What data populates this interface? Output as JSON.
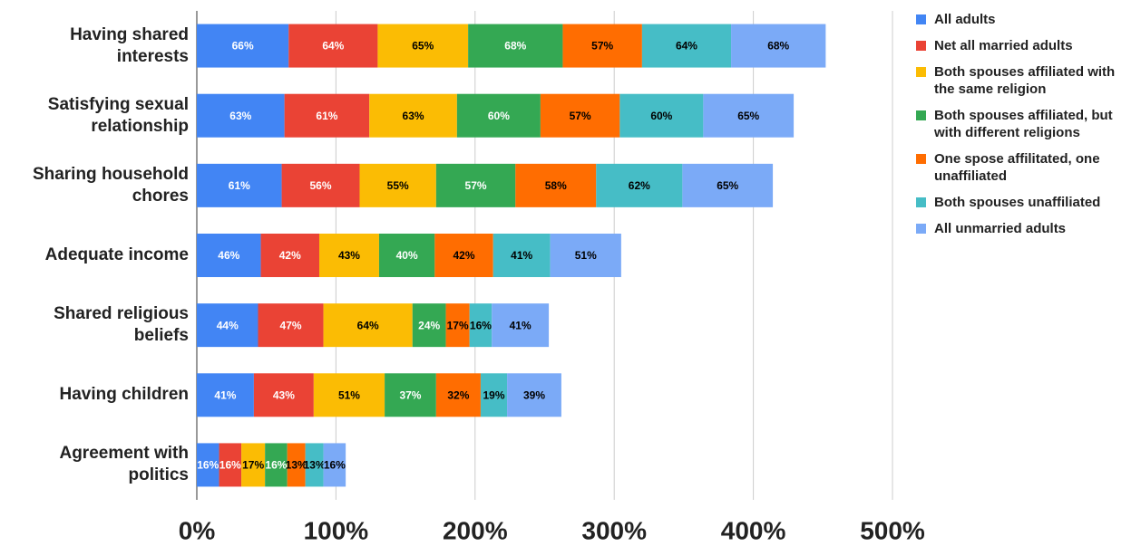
{
  "chart_data": {
    "type": "stacked-bar-horizontal",
    "categories": [
      "Having shared interests",
      "Satisfying sexual relationship",
      "Sharing household chores",
      "Adequate income",
      "Shared religious beliefs",
      "Having children",
      "Agreement with politics"
    ],
    "series": [
      {
        "name": "All adults",
        "color": "#4285f4",
        "label_color": "#ffffff",
        "values": [
          66,
          63,
          61,
          46,
          44,
          41,
          16
        ],
        "value_labels": [
          "66%",
          "63%",
          "61%",
          "46%",
          "44%",
          "41%",
          "16%"
        ]
      },
      {
        "name": "Net all married adults",
        "color": "#ea4335",
        "label_color": "#ffffff",
        "values": [
          64,
          61,
          56,
          42,
          47,
          43,
          16
        ],
        "value_labels": [
          "64%",
          "61%",
          "56%",
          "42%",
          "47%",
          "43%",
          "16%"
        ]
      },
      {
        "name": "Both spouses affiliated with the same religion",
        "color": "#fbbc04",
        "label_color": "#000000",
        "values": [
          65,
          63,
          55,
          43,
          64,
          51,
          17
        ],
        "value_labels": [
          "65%",
          "63%",
          "55%",
          "43%",
          "64%",
          "51%",
          "17%"
        ]
      },
      {
        "name": "Both spouses affiliated, but with different religions",
        "color": "#34a853",
        "label_color": "#ffffff",
        "values": [
          68,
          60,
          57,
          40,
          24,
          37,
          16
        ],
        "value_labels": [
          "68%",
          "60%",
          "57%",
          "40%",
          "24%",
          "37%",
          "16%"
        ]
      },
      {
        "name": "One spose affilitated, one unaffiliated",
        "color": "#ff6d01",
        "label_color": "#000000",
        "values": [
          57,
          57,
          58,
          42,
          17,
          32,
          13
        ],
        "value_labels": [
          "57%",
          "57%",
          "58%",
          "42%",
          "17%",
          "32%",
          "13%"
        ]
      },
      {
        "name": "Both spouses unaffiliated",
        "color": "#46bdc6",
        "label_color": "#000000",
        "values": [
          64,
          60,
          62,
          41,
          16,
          19,
          13
        ],
        "value_labels": [
          "64%",
          "60%",
          "62%",
          "41%",
          "16%",
          "19%",
          "13%"
        ]
      },
      {
        "name": "All unmarried adults",
        "color": "#7baaf7",
        "label_color": "#000000",
        "values": [
          68,
          65,
          65,
          51,
          41,
          39,
          16
        ],
        "value_labels": [
          "68%",
          "65%",
          "65%",
          "51%",
          "41%",
          "39%",
          "16%"
        ]
      }
    ],
    "xlim": [
      0,
      500
    ],
    "xticks": [
      {
        "value": 0,
        "label": "0%"
      },
      {
        "value": 100,
        "label": "100%"
      },
      {
        "value": 200,
        "label": "200%"
      },
      {
        "value": 300,
        "label": "300%"
      },
      {
        "value": 400,
        "label": "400%"
      },
      {
        "value": 500,
        "label": "500%"
      }
    ],
    "grid": true,
    "legend": "right"
  }
}
